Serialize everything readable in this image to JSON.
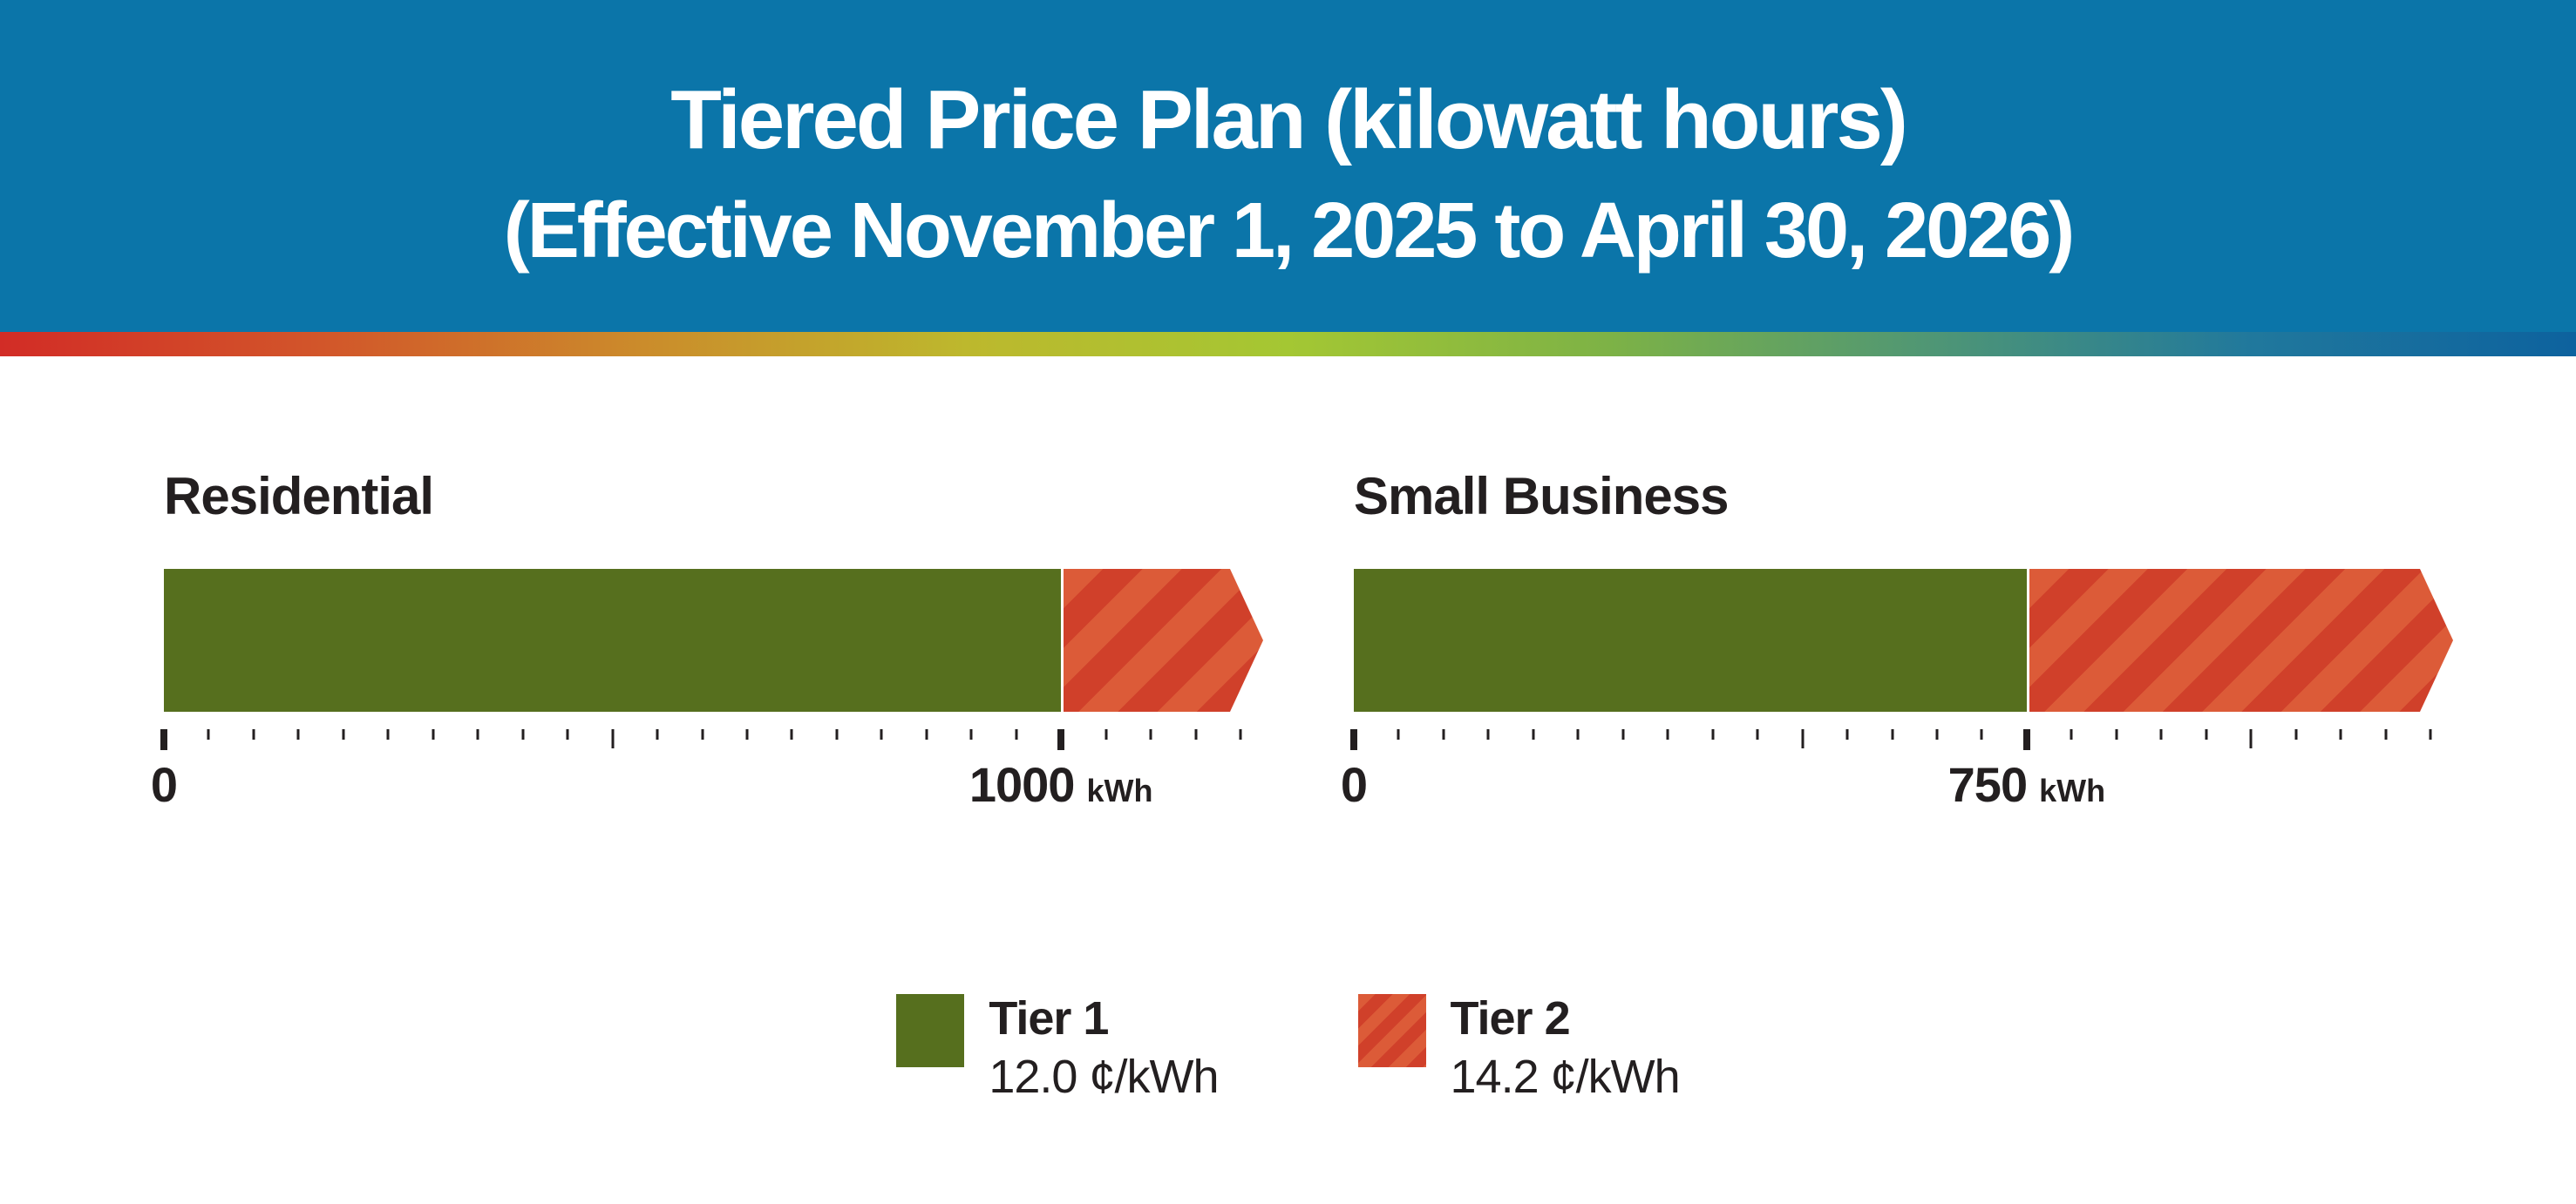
{
  "header": {
    "title_line1": "Tiered Price Plan (kilowatt hours)",
    "title_line2": "(Effective November 1, 2025 to April 30, 2026)"
  },
  "divider_gradient": [
    "#d22c26",
    "#d2562a",
    "#cb8c2b",
    "#bdb82d",
    "#a4c733",
    "#7db246",
    "#4f9675",
    "#20789d",
    "#0d629e"
  ],
  "colors": {
    "header_blue": "#0b75a9",
    "header_text": "#ffffff",
    "tier1_green": "#566f1e",
    "tier2_orange_light": "#dc5b38",
    "tier2_orange_dark": "#d0402a",
    "text_black": "#231f20",
    "background": "#ffffff"
  },
  "chart_data": [
    {
      "type": "bar",
      "title": "Residential",
      "unit": "kWh",
      "axis": {
        "min": 0,
        "max": 1200,
        "minor_tick_step": 50,
        "major_tick_step": 500
      },
      "tiers": [
        {
          "name": "Tier 1",
          "from": 0,
          "to": 1000,
          "style": "solid-green"
        },
        {
          "name": "Tier 2",
          "from": 1000,
          "to": 1200,
          "style": "striped-orange",
          "arrow": true
        }
      ],
      "tick_labels": [
        {
          "value": 0,
          "label": "0"
        },
        {
          "value": 1000,
          "label": "1000",
          "unit": "kWh"
        }
      ]
    },
    {
      "type": "bar",
      "title": "Small Business",
      "unit": "kWh",
      "axis": {
        "min": 0,
        "max": 1200,
        "minor_tick_step": 50,
        "major_tick_step": 500
      },
      "tiers": [
        {
          "name": "Tier 1",
          "from": 0,
          "to": 750,
          "style": "solid-green"
        },
        {
          "name": "Tier 2",
          "from": 750,
          "to": 1200,
          "style": "striped-orange",
          "arrow": true
        }
      ],
      "tick_labels": [
        {
          "value": 0,
          "label": "0"
        },
        {
          "value": 750,
          "label": "750",
          "unit": "kWh"
        }
      ]
    }
  ],
  "legend": [
    {
      "name": "Tier 1",
      "price": "12.0 ¢/kWh",
      "swatch": "solid-green"
    },
    {
      "name": "Tier 2",
      "price": "14.2 ¢/kWh",
      "swatch": "striped-orange"
    }
  ]
}
